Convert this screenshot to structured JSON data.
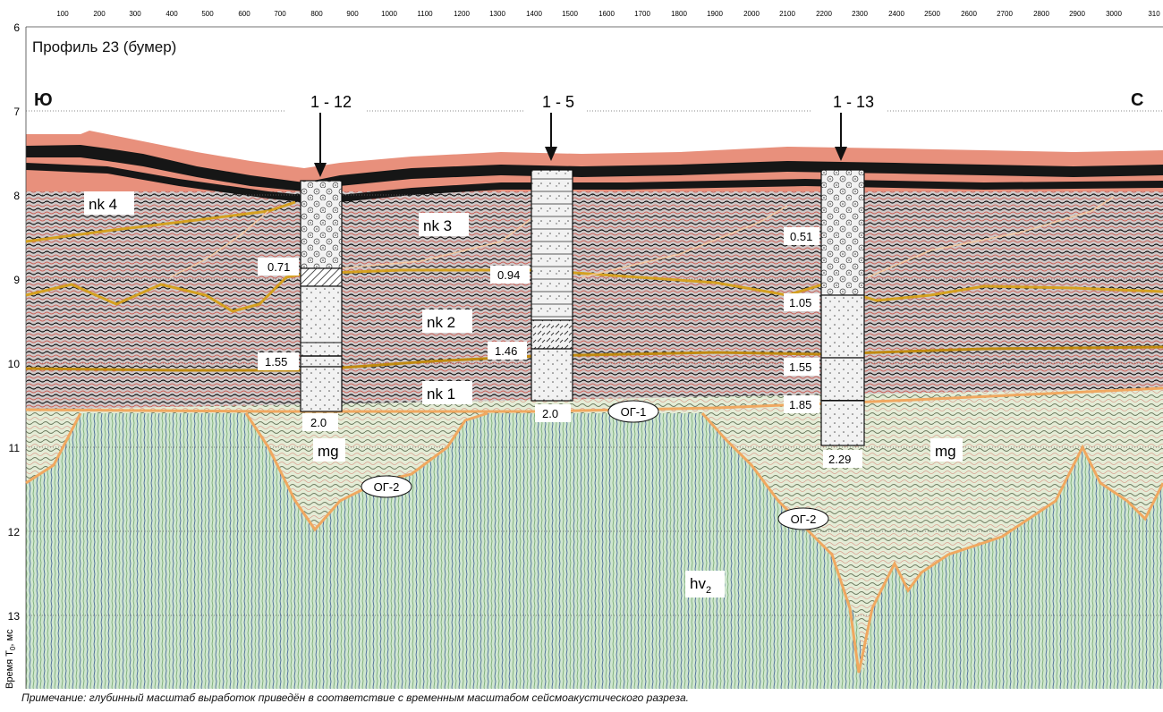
{
  "title": "Профиль 23 (бумер)",
  "direction_left": "Ю",
  "direction_right": "С",
  "y_axis_label": "Время T₀, мс",
  "y_axis_label_main": "Время T",
  "y_axis_label_sub": "0",
  "y_axis_label_tail": ", мс",
  "x_ticks": [
    "100",
    "200",
    "300",
    "400",
    "500",
    "600",
    "700",
    "800",
    "900",
    "1000",
    "1100",
    "1200",
    "1300",
    "1400",
    "1500",
    "1600",
    "1700",
    "1800",
    "1900",
    "2000",
    "2100",
    "2200",
    "2300",
    "2400",
    "2500",
    "2600",
    "2700",
    "2800",
    "2900",
    "3000",
    "310"
  ],
  "y_ticks": [
    "6",
    "7",
    "8",
    "9",
    "10",
    "11",
    "12",
    "13"
  ],
  "layers": {
    "nk4": "nk 4",
    "nk3": "nk 3",
    "nk2": "nk 2",
    "nk1": "nk 1",
    "mg_left": "mg",
    "mg_right": "mg",
    "hv_main": "hv",
    "hv_sub": "2"
  },
  "horizons": {
    "og1": "ОГ-1",
    "og2_left": "ОГ-2",
    "og2_right": "ОГ-2"
  },
  "boreholes": [
    {
      "name": "1 - 12",
      "depths": [
        "0.71",
        "1.55",
        "2.0"
      ]
    },
    {
      "name": "1 - 5",
      "depths": [
        "0.94",
        "1.46",
        "2.0"
      ]
    },
    {
      "name": "1 - 13",
      "depths": [
        "0.51",
        "1.05",
        "1.55",
        "1.85",
        "2.29"
      ]
    }
  ],
  "note": "Примечание: глубинный масштаб выработок приведён в соответствие с временным масштабом сейсмоакустического разреза.",
  "colors": {
    "horizon_orange": "#f0a860",
    "horizon_yellow": "#d4a020",
    "seismic_red": "#e8907c",
    "seismic_black": "#1a1a1a",
    "seismic_green": "#b8e4b0",
    "seismic_blue": "#5a7aa8"
  }
}
